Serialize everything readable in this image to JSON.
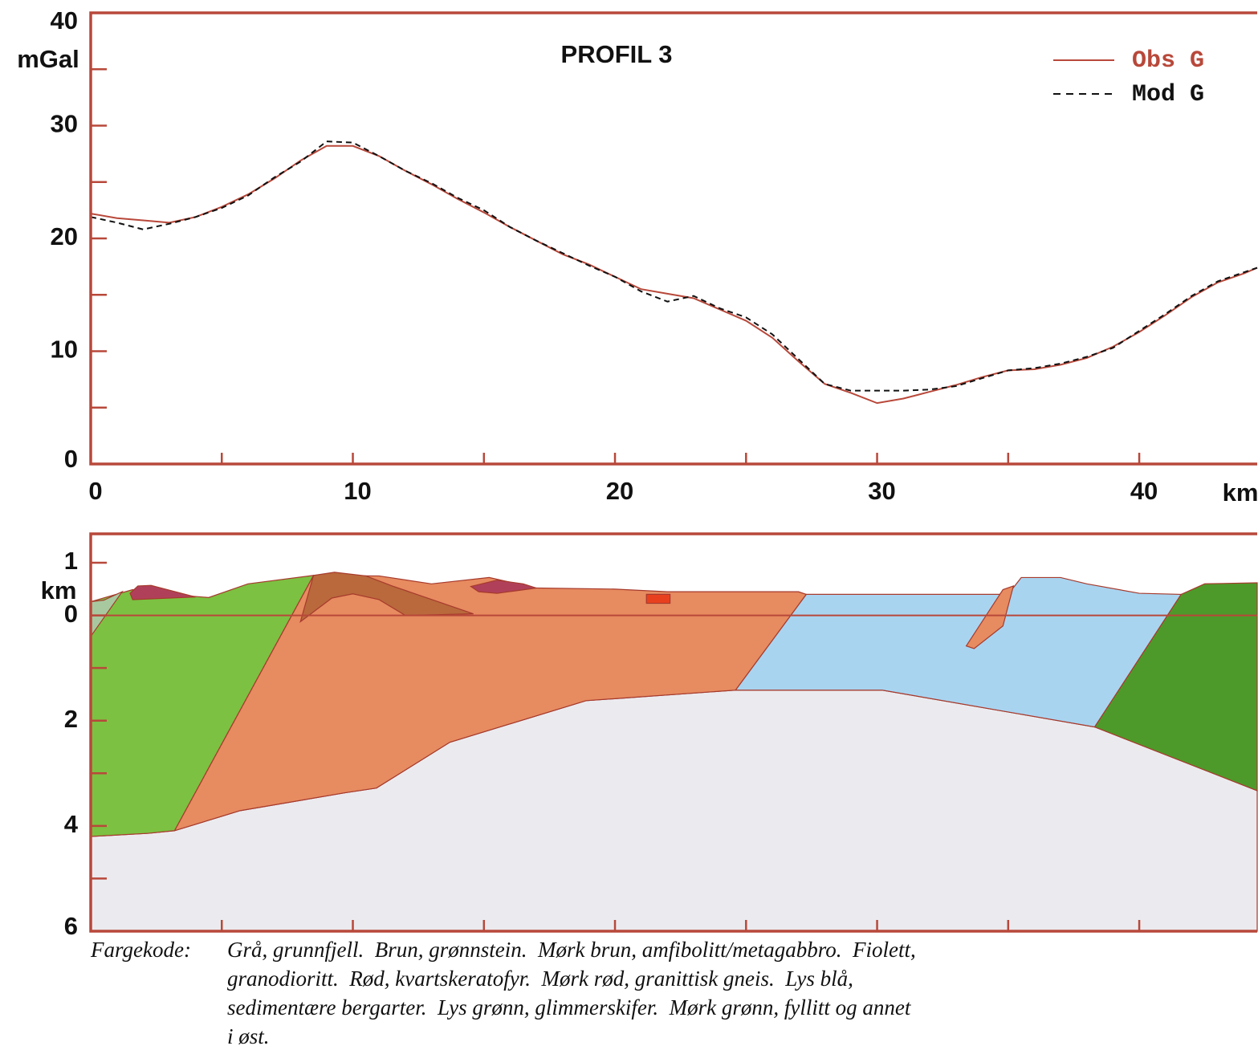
{
  "chart_data": [
    {
      "type": "line",
      "title": "PROFIL 3",
      "xlabel": "km",
      "ylabel": "mGal",
      "x": [
        0,
        1,
        2,
        3,
        4,
        5,
        6,
        7,
        8,
        9,
        10,
        11,
        12,
        13,
        14,
        15,
        16,
        17,
        18,
        19,
        20,
        21,
        22,
        23,
        24,
        25,
        26,
        27,
        28,
        29,
        30,
        31,
        32,
        33,
        34,
        35,
        36,
        37,
        38,
        39,
        40,
        41,
        42,
        43,
        44,
        44.5
      ],
      "series": [
        {
          "name": "Obs G",
          "color": "#b8483a",
          "dash": false,
          "values": [
            22.2,
            21.8,
            21.6,
            21.4,
            21.9,
            22.8,
            23.9,
            25.3,
            26.9,
            28.2,
            28.2,
            27.3,
            26.0,
            24.8,
            23.5,
            22.3,
            21.0,
            19.8,
            18.6,
            17.7,
            16.6,
            15.5,
            15.1,
            14.7,
            13.7,
            12.7,
            11.2,
            9.1,
            7.1,
            6.3,
            5.4,
            5.8,
            6.4,
            7.0,
            7.7,
            8.3,
            8.4,
            8.8,
            9.4,
            10.4,
            11.7,
            13.2,
            14.8,
            16.1,
            16.9,
            17.4
          ]
        },
        {
          "name": "Mod G",
          "color": "#111111",
          "dash": true,
          "values": [
            21.9,
            21.4,
            20.8,
            21.3,
            21.9,
            22.7,
            23.8,
            25.4,
            26.8,
            28.6,
            28.5,
            27.3,
            26.0,
            24.9,
            23.6,
            22.5,
            21.0,
            19.8,
            18.7,
            17.6,
            16.6,
            15.3,
            14.4,
            14.9,
            13.8,
            13.0,
            11.5,
            9.3,
            7.1,
            6.5,
            6.5,
            6.5,
            6.6,
            6.9,
            7.6,
            8.3,
            8.5,
            8.9,
            9.5,
            10.3,
            11.8,
            13.3,
            14.9,
            16.2,
            17.0,
            17.4
          ]
        }
      ],
      "xlim": [
        0,
        44.5
      ],
      "ylim": [
        0,
        40
      ],
      "xticks": [
        0,
        10,
        20,
        30,
        40
      ],
      "xminorticks": [
        5,
        15,
        25,
        35
      ],
      "yticks": [
        0,
        10,
        20,
        30,
        40
      ],
      "yminorticks": [
        5,
        15,
        25,
        35
      ],
      "legend": "upper right",
      "frame_color": "#b8483a"
    },
    {
      "type": "polygon",
      "ylabel": "km",
      "xlim": [
        0,
        44.5
      ],
      "ylim": [
        6,
        -1.55
      ],
      "xminorticks": [
        5,
        10,
        15,
        20,
        25,
        30,
        35,
        40
      ],
      "yticks": [
        {
          "value": -1,
          "label": "1"
        },
        0,
        2,
        4,
        6
      ],
      "yminorticks": [
        1,
        3,
        5
      ],
      "hlines": [
        0
      ],
      "frame_color": "#b8483a",
      "polygons": [
        {
          "color": "#ebebef",
          "x": [
            0,
            2.2,
            3.2,
            5.7,
            9.7,
            10.9,
            13.7,
            18.9,
            24.6,
            30.2,
            38.3,
            44.5,
            44.5,
            0
          ],
          "y": [
            4.2,
            4.14,
            4.09,
            3.71,
            3.37,
            3.28,
            2.41,
            1.62,
            1.42,
            1.42,
            2.12,
            3.33,
            6,
            6
          ]
        },
        {
          "color": "#7cc142",
          "x": [
            0,
            1.6,
            2.7,
            4.5,
            6,
            8.5,
            3.2,
            2.2,
            0
          ],
          "y": [
            -0.26,
            -0.49,
            -0.41,
            -0.34,
            -0.6,
            -0.76,
            4.09,
            4.14,
            4.2
          ]
        },
        {
          "color": "#e78b60",
          "x": [
            8.5,
            11,
            13,
            15.2,
            17,
            20,
            22,
            24,
            27,
            27.3,
            24.6,
            18.9,
            13.7,
            10.9,
            9.7,
            5.7,
            3.2
          ],
          "y": [
            -0.76,
            -0.75,
            -0.6,
            -0.72,
            -0.52,
            -0.5,
            -0.45,
            -0.45,
            -0.45,
            -0.4,
            1.42,
            1.62,
            2.41,
            3.28,
            3.37,
            3.71,
            4.09
          ]
        },
        {
          "color": "#b9693c",
          "x": [
            8.0,
            8.5,
            9.3,
            10.5,
            11.5,
            14.6,
            12,
            11,
            10,
            9.2
          ],
          "y": [
            0.12,
            -0.76,
            -0.82,
            -0.75,
            -0.56,
            -0.03,
            0,
            -0.3,
            -0.41,
            -0.33
          ]
        },
        {
          "color": "#b0405a",
          "x": [
            1.5,
            1.8,
            2.3,
            4,
            1.6
          ],
          "y": [
            -0.42,
            -0.56,
            -0.57,
            -0.35,
            -0.3
          ]
        },
        {
          "color": "#b0405a",
          "x": [
            14.5,
            15.5,
            16.5,
            17,
            15.5,
            14.8
          ],
          "y": [
            -0.55,
            -0.67,
            -0.6,
            -0.52,
            -0.42,
            -0.45
          ]
        },
        {
          "color": "#e8401f",
          "x": [
            21.2,
            22.1,
            22.1,
            21.2
          ],
          "y": [
            -0.4,
            -0.4,
            -0.23,
            -0.23
          ]
        },
        {
          "color": "#a8c9a0",
          "x": [
            0,
            0.5,
            1.2,
            0
          ],
          "y": [
            -0.26,
            -0.29,
            -0.45,
            0.4
          ]
        },
        {
          "color": "#a9d4f0",
          "x": [
            27.3,
            35,
            35.5,
            37,
            38,
            40,
            41.6,
            38.3,
            30.2,
            24.6
          ],
          "y": [
            -0.4,
            -0.4,
            -0.72,
            -0.72,
            -0.6,
            -0.42,
            -0.4,
            2.12,
            1.42,
            1.42
          ]
        },
        {
          "color": "#e78b60",
          "x": [
            33.4,
            34.8,
            35.2,
            34.8,
            33.7
          ],
          "y": [
            0.58,
            -0.49,
            -0.56,
            0.2,
            0.63
          ]
        },
        {
          "color": "#4d9a2a",
          "x": [
            41.6,
            42.5,
            44.5,
            44.5,
            38.3
          ],
          "y": [
            -0.4,
            -0.6,
            -0.62,
            3.33,
            2.12
          ]
        }
      ]
    }
  ],
  "caption": {
    "label": "Fargekode:",
    "lines": [
      "Grå, grunnfjell.  Brun, grønnstein.  Mørk brun, amfibolitt/metagabbro.  Fiolett,",
      "granodioritt.  Rød, kvartskeratofyr.  Mørk rød, granittisk gneis.  Lys blå,",
      "sedimentære bergarter.  Lys grønn, glimmerskifer.  Mørk grønn, fyllitt og annet",
      "i øst."
    ]
  }
}
